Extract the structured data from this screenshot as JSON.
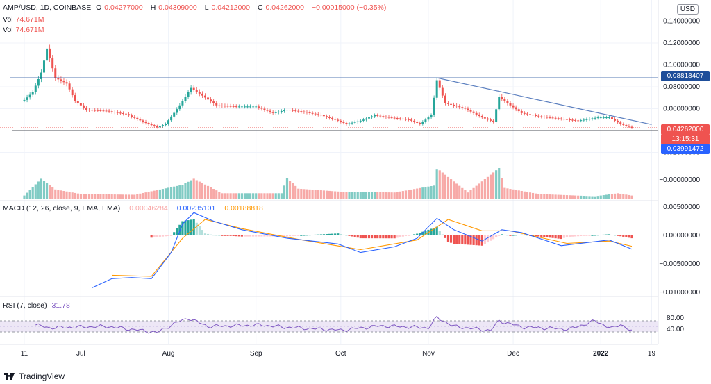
{
  "header": {
    "symbol": "AMP/USD, 1D, COINBASE",
    "open_label": "O",
    "open": "0.04277000",
    "high_label": "H",
    "high": "0.04309000",
    "low_label": "L",
    "low": "0.04212000",
    "close_label": "C",
    "close": "0.04262000",
    "change": "−0.00015000 (−0.35%)",
    "vol1_label": "Vol",
    "vol1": "74.671M",
    "vol2_label": "Vol",
    "vol2": "74.671M"
  },
  "currency": "USD",
  "price_axis": [
    "0.14000000",
    "0.12000000",
    "0.10000000",
    "0.08000000",
    "0.06000000",
    "0.02000000",
    "−0.00000000"
  ],
  "price_tags": {
    "resistance": "0.08818407",
    "last_price": "0.04262000",
    "countdown": "13:15:31",
    "support": "0.03991472"
  },
  "macd": {
    "label": "MACD (12, 26, close, 9, EMA, EMA)",
    "hist": "−0.00046284",
    "macd": "−0.00235101",
    "signal": "−0.00188818",
    "axis": [
      "0.00500000",
      "0.00000000",
      "−0.00500000",
      "−0.01000000"
    ]
  },
  "rsi": {
    "label": "RSI (7, close)",
    "value": "31.78",
    "axis": [
      "80.00",
      "40.00"
    ]
  },
  "time_axis": [
    "11",
    "Jul",
    "Aug",
    "Sep",
    "Oct",
    "Nov",
    "Dec",
    "2022",
    "19"
  ],
  "footer": {
    "brand": "TradingView"
  },
  "colors": {
    "up": "#26a69a",
    "down": "#ef5350",
    "macd_line": "#2962ff",
    "signal_line": "#ff9800",
    "rsi_line": "#7e57c2",
    "rsi_band": "#ede7f6",
    "trendline": "#5b7fbf",
    "level": "#1e4e9a"
  },
  "chart_data": {
    "type": "candlestick",
    "symbol": "AMP/USD",
    "interval": "1D",
    "x_range": [
      "2021-06-11",
      "2022-01-19"
    ],
    "price_ylim": [
      0.02,
      0.14
    ],
    "price_path_usd": [
      [
        "2021-06-11",
        0.068
      ],
      [
        "2021-06-14",
        0.075
      ],
      [
        "2021-06-17",
        0.093
      ],
      [
        "2021-06-19",
        0.115
      ],
      [
        "2021-06-22",
        0.088
      ],
      [
        "2021-06-26",
        0.083
      ],
      [
        "2021-06-29",
        0.067
      ],
      [
        "2021-07-03",
        0.059
      ],
      [
        "2021-07-10",
        0.058
      ],
      [
        "2021-07-17",
        0.055
      ],
      [
        "2021-07-24",
        0.047
      ],
      [
        "2021-07-28",
        0.043
      ],
      [
        "2021-07-31",
        0.046
      ],
      [
        "2021-08-05",
        0.063
      ],
      [
        "2021-08-09",
        0.079
      ],
      [
        "2021-08-13",
        0.072
      ],
      [
        "2021-08-18",
        0.063
      ],
      [
        "2021-08-25",
        0.062
      ],
      [
        "2021-09-01",
        0.062
      ],
      [
        "2021-09-07",
        0.056
      ],
      [
        "2021-09-12",
        0.059
      ],
      [
        "2021-09-18",
        0.057
      ],
      [
        "2021-09-24",
        0.054
      ],
      [
        "2021-09-30",
        0.049
      ],
      [
        "2021-10-03",
        0.046
      ],
      [
        "2021-10-08",
        0.049
      ],
      [
        "2021-10-13",
        0.054
      ],
      [
        "2021-10-18",
        0.052
      ],
      [
        "2021-10-25",
        0.05
      ],
      [
        "2021-10-29",
        0.046
      ],
      [
        "2021-11-02",
        0.054
      ],
      [
        "2021-11-04",
        0.086
      ],
      [
        "2021-11-07",
        0.065
      ],
      [
        "2021-11-14",
        0.06
      ],
      [
        "2021-11-20",
        0.052
      ],
      [
        "2021-11-24",
        0.048
      ],
      [
        "2021-11-26",
        0.071
      ],
      [
        "2021-11-30",
        0.063
      ],
      [
        "2021-12-04",
        0.056
      ],
      [
        "2021-12-10",
        0.053
      ],
      [
        "2021-12-17",
        0.051
      ],
      [
        "2021-12-24",
        0.049
      ],
      [
        "2021-12-31",
        0.052
      ],
      [
        "2022-01-04",
        0.052
      ],
      [
        "2022-01-08",
        0.046
      ],
      [
        "2022-01-12",
        0.0426
      ]
    ],
    "horizontal_levels": [
      0.08818407,
      0.03991472
    ],
    "trendline": {
      "from": [
        "2021-11-04",
        0.0882
      ],
      "to": [
        "2022-01-19",
        0.0455
      ]
    },
    "volume_path_m": [
      [
        "2021-06-11",
        40
      ],
      [
        "2021-06-14",
        150
      ],
      [
        "2021-06-17",
        260
      ],
      [
        "2021-06-22",
        120
      ],
      [
        "2021-07-01",
        60
      ],
      [
        "2021-07-20",
        50
      ],
      [
        "2021-08-06",
        180
      ],
      [
        "2021-08-10",
        260
      ],
      [
        "2021-08-20",
        70
      ],
      [
        "2021-09-10",
        70
      ],
      [
        "2021-09-12",
        270
      ],
      [
        "2021-09-16",
        130
      ],
      [
        "2021-10-01",
        90
      ],
      [
        "2021-10-20",
        80
      ],
      [
        "2021-11-03",
        170
      ],
      [
        "2021-11-04",
        380
      ],
      [
        "2021-11-05",
        370
      ],
      [
        "2021-11-15",
        80
      ],
      [
        "2021-11-26",
        400
      ],
      [
        "2021-11-28",
        140
      ],
      [
        "2021-12-10",
        60
      ],
      [
        "2021-12-30",
        30
      ],
      [
        "2022-01-07",
        70
      ],
      [
        "2022-01-12",
        40
      ]
    ],
    "macd_line": [
      [
        "2021-07-05",
        -0.0092
      ],
      [
        "2021-07-12",
        -0.0076
      ],
      [
        "2021-07-19",
        -0.0074
      ],
      [
        "2021-07-26",
        -0.0076
      ],
      [
        "2021-08-02",
        -0.003
      ],
      [
        "2021-08-06",
        0.002
      ],
      [
        "2021-08-10",
        0.004
      ],
      [
        "2021-08-17",
        0.0025
      ],
      [
        "2021-08-27",
        0.001
      ],
      [
        "2021-09-12",
        -0.0005
      ],
      [
        "2021-09-30",
        -0.0015
      ],
      [
        "2021-10-08",
        -0.003
      ],
      [
        "2021-10-20",
        -0.002
      ],
      [
        "2021-10-28",
        -0.0005
      ],
      [
        "2021-11-04",
        0.003
      ],
      [
        "2021-11-10",
        0.001
      ],
      [
        "2021-11-20",
        -0.001
      ],
      [
        "2021-11-27",
        0.001
      ],
      [
        "2021-12-04",
        0.0005
      ],
      [
        "2021-12-18",
        -0.0018
      ],
      [
        "2022-01-04",
        -0.0008
      ],
      [
        "2022-01-12",
        -0.0024
      ]
    ],
    "signal_line": [
      [
        "2021-07-12",
        -0.007
      ],
      [
        "2021-07-26",
        -0.0072
      ],
      [
        "2021-08-06",
        -0.0005
      ],
      [
        "2021-08-14",
        0.0028
      ],
      [
        "2021-08-27",
        0.0012
      ],
      [
        "2021-09-16",
        -0.0007
      ],
      [
        "2021-10-08",
        -0.0025
      ],
      [
        "2021-10-28",
        -0.0008
      ],
      [
        "2021-11-08",
        0.0028
      ],
      [
        "2021-11-20",
        0.0008
      ],
      [
        "2021-11-30",
        0.0008
      ],
      [
        "2021-12-20",
        -0.0014
      ],
      [
        "2022-01-04",
        -0.001
      ],
      [
        "2022-01-12",
        -0.0019
      ]
    ],
    "rsi_ylim": [
      20,
      90
    ],
    "rsi_line": [
      [
        "2021-06-15",
        55
      ],
      [
        "2021-06-20",
        45
      ],
      [
        "2021-07-10",
        50
      ],
      [
        "2021-07-20",
        38
      ],
      [
        "2021-07-28",
        28
      ],
      [
        "2021-08-03",
        60
      ],
      [
        "2021-08-08",
        80
      ],
      [
        "2021-08-15",
        50
      ],
      [
        "2021-09-03",
        55
      ],
      [
        "2021-09-10",
        48
      ],
      [
        "2021-10-01",
        36
      ],
      [
        "2021-10-15",
        52
      ],
      [
        "2021-11-01",
        45
      ],
      [
        "2021-11-04",
        82
      ],
      [
        "2021-11-10",
        50
      ],
      [
        "2021-11-23",
        35
      ],
      [
        "2021-11-26",
        70
      ],
      [
        "2021-12-04",
        48
      ],
      [
        "2021-12-21",
        40
      ],
      [
        "2021-12-30",
        70
      ],
      [
        "2022-01-05",
        42
      ],
      [
        "2022-01-08",
        58
      ],
      [
        "2022-01-12",
        31.78
      ]
    ],
    "rsi_levels": [
      70,
      30
    ]
  }
}
